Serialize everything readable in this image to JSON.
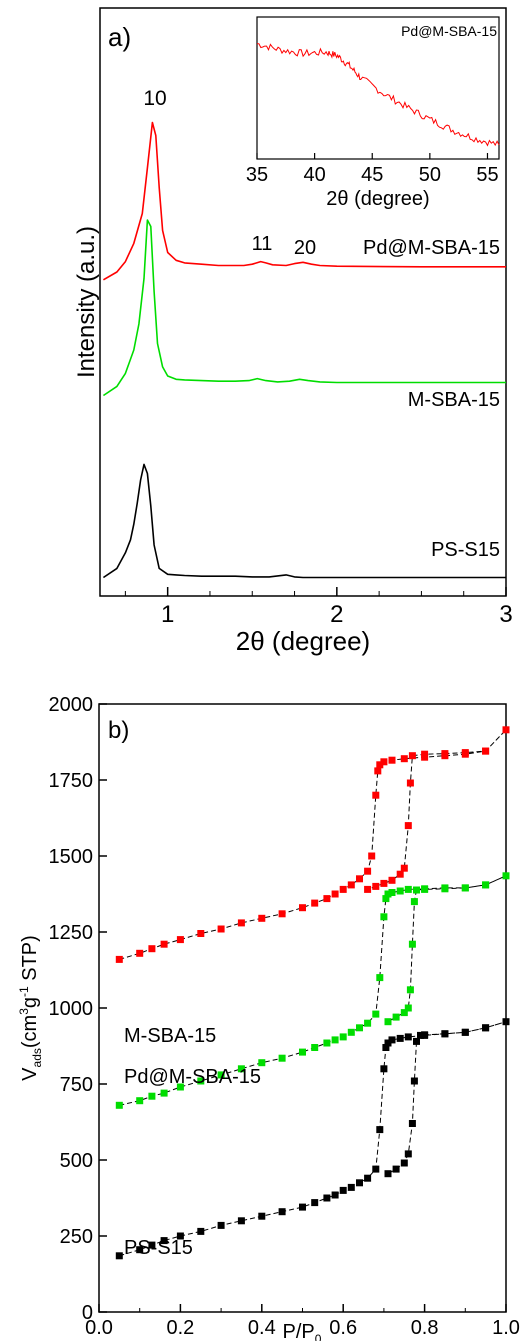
{
  "chart_data": [
    {
      "type": "line",
      "panel_label": "a)",
      "xlabel": "2θ (degree)",
      "ylabel": "Intensity (a.u.)",
      "xlim": [
        0.6,
        3.0
      ],
      "xticks": [
        "1",
        "2",
        "3"
      ],
      "xtick_values": [
        1,
        2,
        3
      ],
      "series": [
        {
          "name": "Pd@M-SBA-15",
          "color": "#ff0000",
          "x": [
            0.62,
            0.7,
            0.75,
            0.8,
            0.85,
            0.88,
            0.91,
            0.93,
            0.95,
            0.97,
            1.0,
            1.05,
            1.1,
            1.2,
            1.3,
            1.4,
            1.45,
            1.5,
            1.55,
            1.58,
            1.62,
            1.7,
            1.75,
            1.8,
            1.85,
            1.9,
            2.0,
            2.5,
            3.0
          ],
          "y": [
            2.34,
            2.4,
            2.48,
            2.62,
            2.85,
            3.2,
            3.55,
            3.45,
            3.05,
            2.72,
            2.55,
            2.49,
            2.47,
            2.46,
            2.45,
            2.45,
            2.45,
            2.46,
            2.48,
            2.47,
            2.455,
            2.45,
            2.465,
            2.475,
            2.46,
            2.45,
            2.445,
            2.44,
            2.44
          ]
        },
        {
          "name": "M-SBA-15",
          "color": "#00dd00",
          "x": [
            0.62,
            0.7,
            0.75,
            0.8,
            0.83,
            0.86,
            0.88,
            0.9,
            0.92,
            0.94,
            0.97,
            1.0,
            1.05,
            1.1,
            1.2,
            1.3,
            1.4,
            1.48,
            1.53,
            1.58,
            1.65,
            1.72,
            1.78,
            1.83,
            1.9,
            2.0,
            2.5,
            3.0
          ],
          "y": [
            1.45,
            1.52,
            1.62,
            1.8,
            2.0,
            2.35,
            2.8,
            2.75,
            2.25,
            1.85,
            1.67,
            1.6,
            1.575,
            1.57,
            1.565,
            1.56,
            1.56,
            1.565,
            1.58,
            1.565,
            1.555,
            1.56,
            1.575,
            1.565,
            1.555,
            1.55,
            1.55,
            1.55
          ]
        },
        {
          "name": "PS-S15",
          "color": "#000000",
          "x": [
            0.62,
            0.7,
            0.75,
            0.78,
            0.8,
            0.82,
            0.84,
            0.86,
            0.88,
            0.9,
            0.92,
            0.95,
            1.0,
            1.05,
            1.1,
            1.2,
            1.4,
            1.5,
            1.6,
            1.7,
            1.75,
            1.8,
            2.0,
            2.5,
            3.0
          ],
          "y": [
            0.05,
            0.12,
            0.24,
            0.34,
            0.46,
            0.62,
            0.8,
            0.92,
            0.85,
            0.6,
            0.3,
            0.12,
            0.075,
            0.07,
            0.065,
            0.06,
            0.06,
            0.055,
            0.055,
            0.07,
            0.055,
            0.05,
            0.05,
            0.05,
            0.05
          ]
        }
      ],
      "peak_labels": [
        "10",
        "11",
        "20"
      ],
      "peak_label_positions": [
        [
          0.92,
          3.65
        ],
        [
          1.57,
          2.57
        ],
        [
          1.8,
          2.57
        ]
      ],
      "inset": {
        "type": "line",
        "title": "Pd@M-SBA-15",
        "xlabel": "2θ (degree)",
        "xlim": [
          35,
          56
        ],
        "xticks": [
          "35",
          "40",
          "45",
          "50",
          "55"
        ],
        "xtick_values": [
          35,
          40,
          45,
          50,
          55
        ],
        "color": "#ff0000",
        "x": [
          35,
          37,
          39,
          41,
          42,
          43,
          44,
          46,
          48,
          50,
          52,
          54,
          56
        ],
        "y": [
          0.88,
          0.83,
          0.8,
          0.81,
          0.78,
          0.7,
          0.6,
          0.47,
          0.36,
          0.26,
          0.17,
          0.1,
          0.05
        ]
      }
    },
    {
      "type": "line",
      "panel_label": "b)",
      "xlabel": "P/P₀",
      "ylabel": "Vₐds(cm³g⁻¹ STP)",
      "xlim": [
        0.0,
        1.0
      ],
      "ylim": [
        0,
        2000
      ],
      "xticks": [
        "0.0",
        "0.2",
        "0.4",
        "0.6",
        "0.8",
        "1.0"
      ],
      "xtick_values": [
        0.0,
        0.2,
        0.4,
        0.6,
        0.8,
        1.0
      ],
      "yticks": [
        "0",
        "250",
        "500",
        "750",
        "1000",
        "1250",
        "1500",
        "1750",
        "2000"
      ],
      "ytick_values": [
        0,
        250,
        500,
        750,
        1000,
        1250,
        1500,
        1750,
        2000
      ],
      "series": [
        {
          "name": "Pd@M-SBA-15",
          "color": "#ff0000",
          "x": [
            0.05,
            0.1,
            0.13,
            0.16,
            0.2,
            0.25,
            0.3,
            0.35,
            0.4,
            0.45,
            0.5,
            0.53,
            0.56,
            0.58,
            0.6,
            0.62,
            0.64,
            0.66,
            0.67,
            0.68,
            0.685,
            0.69,
            0.7,
            0.72,
            0.75,
            0.8,
            0.85,
            0.9,
            0.95,
            1.0,
            0.95,
            0.9,
            0.85,
            0.8,
            0.77,
            0.765,
            0.76,
            0.75,
            0.74,
            0.72,
            0.7,
            0.68,
            0.66
          ],
          "y": [
            1160,
            1180,
            1195,
            1210,
            1225,
            1245,
            1260,
            1280,
            1295,
            1310,
            1330,
            1345,
            1360,
            1375,
            1390,
            1405,
            1425,
            1450,
            1500,
            1700,
            1780,
            1800,
            1810,
            1815,
            1820,
            1825,
            1830,
            1835,
            1845,
            1915,
            1845,
            1840,
            1837,
            1835,
            1830,
            1740,
            1600,
            1460,
            1440,
            1420,
            1410,
            1400,
            1390
          ]
        },
        {
          "name": "M-SBA-15",
          "color": "#00dd00",
          "x": [
            0.05,
            0.1,
            0.13,
            0.16,
            0.2,
            0.25,
            0.3,
            0.35,
            0.4,
            0.45,
            0.5,
            0.53,
            0.56,
            0.58,
            0.6,
            0.62,
            0.64,
            0.66,
            0.68,
            0.69,
            0.7,
            0.705,
            0.71,
            0.72,
            0.74,
            0.76,
            0.8,
            0.85,
            0.9,
            0.95,
            1.0,
            0.95,
            0.9,
            0.85,
            0.8,
            0.78,
            0.775,
            0.77,
            0.765,
            0.76,
            0.75,
            0.73,
            0.71
          ],
          "y": [
            680,
            695,
            710,
            720,
            740,
            760,
            780,
            800,
            820,
            835,
            855,
            870,
            885,
            895,
            905,
            920,
            935,
            950,
            980,
            1100,
            1300,
            1360,
            1375,
            1380,
            1385,
            1390,
            1392,
            1395,
            1395,
            1405,
            1435,
            1405,
            1395,
            1392,
            1390,
            1388,
            1350,
            1210,
            1060,
            1000,
            985,
            970,
            955
          ]
        },
        {
          "name": "PS-S15",
          "color": "#000000",
          "x": [
            0.05,
            0.1,
            0.13,
            0.16,
            0.2,
            0.25,
            0.3,
            0.35,
            0.4,
            0.45,
            0.5,
            0.53,
            0.56,
            0.58,
            0.6,
            0.62,
            0.64,
            0.66,
            0.68,
            0.69,
            0.7,
            0.705,
            0.71,
            0.72,
            0.74,
            0.76,
            0.8,
            0.85,
            0.9,
            0.95,
            1.0,
            0.95,
            0.9,
            0.85,
            0.8,
            0.79,
            0.78,
            0.775,
            0.77,
            0.76,
            0.75,
            0.73,
            0.71
          ],
          "y": [
            185,
            205,
            220,
            235,
            250,
            265,
            285,
            300,
            315,
            330,
            345,
            360,
            375,
            385,
            400,
            410,
            425,
            440,
            470,
            600,
            800,
            870,
            885,
            895,
            900,
            905,
            910,
            915,
            920,
            935,
            955,
            935,
            920,
            915,
            912,
            910,
            890,
            760,
            620,
            520,
            490,
            470,
            455
          ]
        }
      ]
    }
  ]
}
